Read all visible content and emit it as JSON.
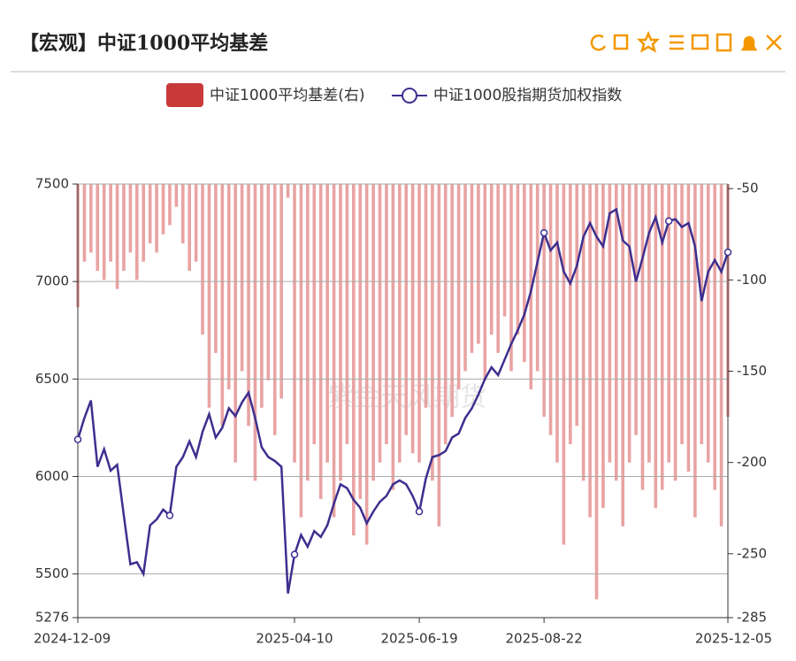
{
  "chart_data": {
    "type": "bar-line",
    "title": "【宏观】中证1000平均基差",
    "watermark": "紫金天风期货",
    "categories": [
      "2024-12-09",
      null,
      null,
      null,
      null,
      null,
      null,
      null,
      null,
      null,
      null,
      null,
      null,
      null,
      null,
      null,
      null,
      null,
      null,
      null,
      null,
      null,
      null,
      null,
      null,
      null,
      null,
      null,
      null,
      null,
      null,
      null,
      null,
      "2025-04-10",
      null,
      null,
      null,
      null,
      null,
      null,
      null,
      null,
      null,
      null,
      null,
      null,
      null,
      null,
      null,
      null,
      null,
      null,
      "2025-06-19",
      null,
      null,
      null,
      null,
      null,
      null,
      null,
      null,
      null,
      null,
      null,
      null,
      null,
      null,
      null,
      null,
      null,
      null,
      "2025-08-22",
      null,
      null,
      null,
      null,
      null,
      null,
      null,
      null,
      null,
      null,
      null,
      null,
      null,
      null,
      null,
      null,
      null,
      null,
      null,
      null,
      null,
      null,
      null,
      null,
      null,
      null,
      null,
      "2025-12-05"
    ],
    "series": [
      {
        "name": "中证1000平均基差(右)",
        "color": "#c83a3a",
        "bar_color": "#e9a3a3",
        "axis": "y2",
        "values": [
          -115,
          -90,
          -85,
          -95,
          -100,
          -90,
          -105,
          -95,
          -85,
          -100,
          -90,
          -80,
          -85,
          -75,
          -70,
          -60,
          -80,
          -95,
          -90,
          -130,
          -170,
          -140,
          -180,
          -160,
          -200,
          -150,
          -180,
          -210,
          -170,
          -155,
          -185,
          -165,
          -55,
          -200,
          -230,
          -210,
          -190,
          -220,
          -200,
          -230,
          -210,
          -190,
          -240,
          -220,
          -245,
          -210,
          -200,
          -190,
          -215,
          -200,
          -185,
          -195,
          -200,
          -170,
          -210,
          -235,
          -190,
          -175,
          -160,
          -150,
          -140,
          -135,
          -155,
          -130,
          -140,
          -120,
          -150,
          -130,
          -145,
          -160,
          -150,
          -175,
          -185,
          -200,
          -245,
          -190,
          -180,
          -210,
          -230,
          -275,
          -225,
          -200,
          -210,
          -235,
          -200,
          -185,
          -215,
          -200,
          -225,
          -215,
          -200,
          -210,
          -190,
          -205,
          -230,
          -190,
          -200,
          -215,
          -235,
          -175
        ]
      },
      {
        "name": "中证1000股指期货加权指数",
        "color": "#3d2f8f",
        "values": [
          6190,
          6300,
          6390,
          6050,
          6140,
          6030,
          6060,
          5800,
          5550,
          5560,
          5500,
          5750,
          5780,
          5830,
          5800,
          6050,
          6100,
          6180,
          6100,
          6230,
          6320,
          6200,
          6250,
          6350,
          6310,
          6380,
          6430,
          6300,
          6150,
          6100,
          6080,
          6050,
          5400,
          5600,
          5700,
          5640,
          5720,
          5690,
          5750,
          5860,
          5960,
          5940,
          5880,
          5840,
          5760,
          5820,
          5870,
          5900,
          5960,
          5980,
          5960,
          5900,
          5820,
          5990,
          6100,
          6110,
          6130,
          6200,
          6220,
          6300,
          6350,
          6420,
          6500,
          6560,
          6520,
          6600,
          6680,
          6750,
          6830,
          6950,
          7100,
          7250,
          7160,
          7200,
          7050,
          6990,
          7080,
          7230,
          7300,
          7230,
          7180,
          7350,
          7370,
          7210,
          7180,
          7000,
          7120,
          7250,
          7330,
          7200,
          7310,
          7320,
          7280,
          7300,
          7180,
          6900,
          7050,
          7110,
          7050,
          7150
        ]
      }
    ],
    "ylim": [
      5276,
      7500
    ],
    "yticks": [
      5276,
      5500,
      6000,
      6500,
      7000,
      7500
    ],
    "y2lim": [
      -285,
      -47.5
    ],
    "y2ticks": [
      -285,
      -250,
      -200,
      -150,
      -100,
      -50
    ],
    "grid": true
  }
}
